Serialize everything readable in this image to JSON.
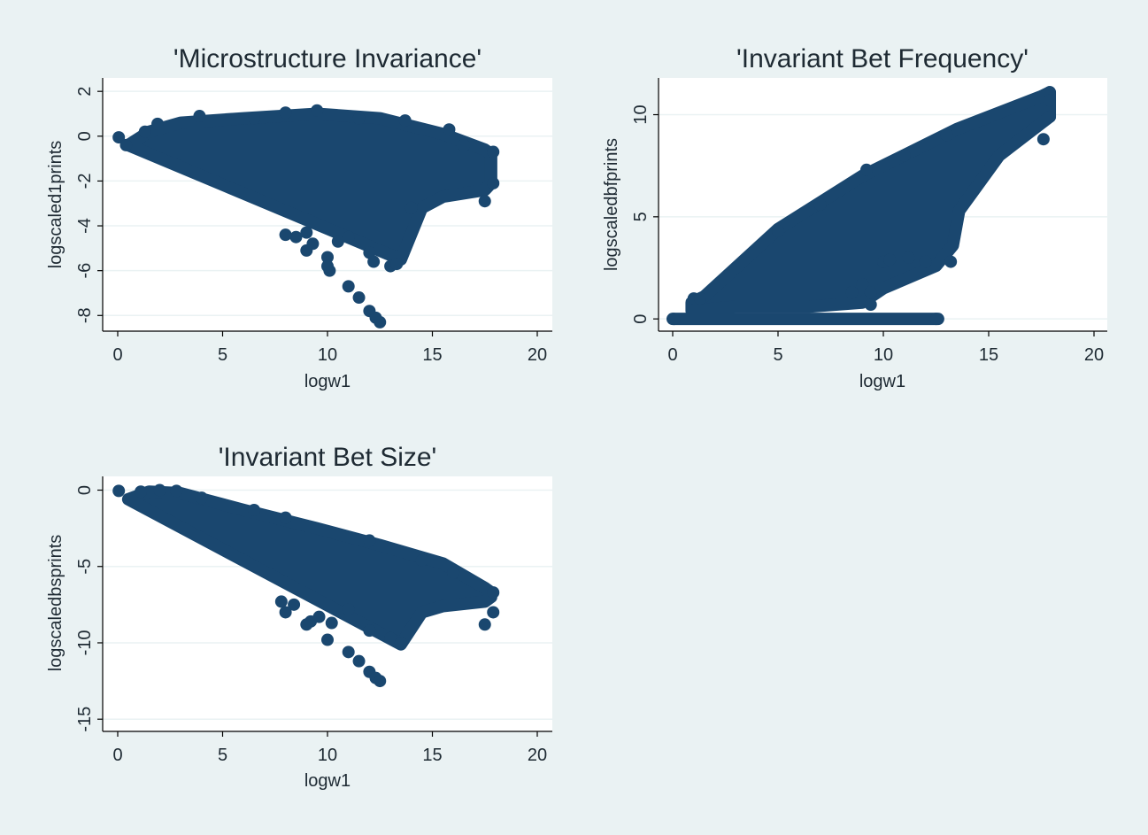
{
  "colors": {
    "marker": "#1a476f",
    "background": "#eaf2f3",
    "plot_area": "#ffffff"
  },
  "chart_data": [
    {
      "type": "scatter",
      "title": "'Microstructure Invariance'",
      "xlabel": "logw1",
      "ylabel": "logscaled1prints",
      "xlim": [
        0,
        20
      ],
      "ylim": [
        -8.7,
        2.6
      ],
      "xticks": [
        "0",
        "5",
        "10",
        "15",
        "20"
      ],
      "yticks": [
        "2",
        "0",
        "-2",
        "-4",
        "-6",
        "-8"
      ],
      "grid": true,
      "band": {
        "lower": [
          [
            0.5,
            -0.4
          ],
          [
            13.5,
            -5.5
          ],
          [
            14.5,
            -3.2
          ],
          [
            15.5,
            -2.7
          ],
          [
            17.5,
            -2.4
          ],
          [
            17.8,
            -2.1
          ]
        ],
        "upper": [
          [
            0.5,
            -0.4
          ],
          [
            1.5,
            0.2
          ],
          [
            3,
            0.6
          ],
          [
            6,
            0.8
          ],
          [
            9.5,
            1.0
          ],
          [
            12.5,
            0.8
          ],
          [
            15.5,
            0.1
          ],
          [
            17.5,
            -0.6
          ],
          [
            17.8,
            -0.8
          ]
        ]
      },
      "points": [
        [
          0.05,
          -0.05
        ],
        [
          0.4,
          -0.4
        ],
        [
          1.3,
          0.2
        ],
        [
          1.9,
          0.55
        ],
        [
          3.9,
          0.9
        ],
        [
          6.5,
          0.8
        ],
        [
          8.0,
          1.05
        ],
        [
          9.5,
          1.15
        ],
        [
          11.5,
          0.8
        ],
        [
          13.7,
          0.7
        ],
        [
          15.8,
          0.3
        ],
        [
          16.5,
          -0.4
        ],
        [
          17.9,
          -0.7
        ],
        [
          17.9,
          -2.1
        ],
        [
          17.5,
          -2.9
        ],
        [
          8.5,
          -4.5
        ],
        [
          9.0,
          -4.3
        ],
        [
          9.3,
          -4.8
        ],
        [
          10.0,
          -5.4
        ],
        [
          10.1,
          -6.0
        ],
        [
          10.5,
          -4.7
        ],
        [
          11.0,
          -4.5
        ],
        [
          12.0,
          -5.2
        ],
        [
          12.2,
          -5.6
        ],
        [
          13.0,
          -5.8
        ],
        [
          13.3,
          -5.7
        ],
        [
          14.0,
          -3.2
        ],
        [
          8.0,
          -4.4
        ],
        [
          9.0,
          -5.1
        ],
        [
          10.0,
          -5.8
        ],
        [
          11.0,
          -6.7
        ],
        [
          11.5,
          -7.2
        ],
        [
          12.0,
          -7.8
        ],
        [
          12.3,
          -8.1
        ],
        [
          12.5,
          -8.3
        ]
      ]
    },
    {
      "type": "scatter",
      "title": "'Invariant Bet Frequency'",
      "xlabel": "logw1",
      "ylabel": "logscaledbfprints",
      "xlim": [
        0,
        20
      ],
      "ylim": [
        -0.6,
        11.8
      ],
      "xticks": [
        "0",
        "5",
        "10",
        "15",
        "20"
      ],
      "yticks": [
        "0",
        "5",
        "10"
      ],
      "grid": true,
      "band": {
        "upper": [
          [
            0.9,
            0.8
          ],
          [
            1.5,
            1.1
          ],
          [
            5,
            4.4
          ],
          [
            9,
            7.0
          ],
          [
            13.5,
            9.3
          ],
          [
            17.5,
            10.9
          ],
          [
            17.9,
            11.1
          ]
        ],
        "lower": [
          [
            0.9,
            0.4
          ],
          [
            3,
            0.6
          ],
          [
            6.5,
            0.6
          ],
          [
            9,
            0.8
          ],
          [
            10,
            1.5
          ],
          [
            12.5,
            2.6
          ],
          [
            13.3,
            3.6
          ],
          [
            13.6,
            5.3
          ],
          [
            15.5,
            8.0
          ],
          [
            17.9,
            9.9
          ]
        ]
      },
      "baseline": {
        "y": 0,
        "x_from": 0,
        "x_to": 12.6
      },
      "points": [
        [
          0.05,
          0.0
        ],
        [
          1.0,
          1.0
        ],
        [
          1.3,
          1.0
        ],
        [
          17.9,
          11.1
        ],
        [
          17.9,
          9.9
        ],
        [
          17.6,
          8.8
        ],
        [
          17.9,
          10.7
        ],
        [
          5.0,
          4.3
        ],
        [
          7.0,
          5.6
        ],
        [
          9.2,
          7.3
        ],
        [
          11.0,
          8.0
        ],
        [
          13.0,
          9.0
        ],
        [
          8.5,
          1.3
        ],
        [
          9.0,
          1.7
        ],
        [
          9.4,
          0.7
        ],
        [
          9.4,
          1.3
        ],
        [
          10.0,
          2.8
        ],
        [
          10.3,
          2.9
        ],
        [
          11.2,
          3.0
        ],
        [
          12.0,
          2.8
        ],
        [
          13.2,
          2.8
        ],
        [
          12.5,
          0.0
        ]
      ]
    },
    {
      "type": "scatter",
      "title": "'Invariant Bet Size'",
      "xlabel": "logw1",
      "ylabel": "logscaledbsprints",
      "xlim": [
        0,
        20
      ],
      "ylim": [
        -15.8,
        0.9
      ],
      "xticks": [
        "0",
        "5",
        "10",
        "15",
        "20"
      ],
      "yticks": [
        "0",
        "-5",
        "-10",
        "-15"
      ],
      "grid": true,
      "band": {
        "lower": [
          [
            0.5,
            -0.6
          ],
          [
            13.5,
            -10.1
          ],
          [
            14.5,
            -8.0
          ],
          [
            15.5,
            -7.6
          ],
          [
            17.5,
            -7.3
          ],
          [
            17.8,
            -7.0
          ]
        ],
        "upper": [
          [
            0.5,
            -0.6
          ],
          [
            1.5,
            -0.1
          ],
          [
            3,
            -0.2
          ],
          [
            6,
            -1.3
          ],
          [
            9.5,
            -2.5
          ],
          [
            12.5,
            -3.6
          ],
          [
            15.5,
            -4.8
          ],
          [
            17.5,
            -6.4
          ],
          [
            17.8,
            -6.7
          ]
        ]
      },
      "points": [
        [
          0.05,
          -0.05
        ],
        [
          1.1,
          -0.1
        ],
        [
          2.0,
          0.0
        ],
        [
          2.8,
          -0.05
        ],
        [
          4.0,
          -0.5
        ],
        [
          6.5,
          -1.3
        ],
        [
          8.0,
          -1.8
        ],
        [
          12.0,
          -3.3
        ],
        [
          14.5,
          -4.6
        ],
        [
          16.0,
          -5.4
        ],
        [
          17.9,
          -6.7
        ],
        [
          17.9,
          -8.0
        ],
        [
          17.5,
          -8.8
        ],
        [
          7.8,
          -7.3
        ],
        [
          8.4,
          -7.5
        ],
        [
          9.2,
          -8.6
        ],
        [
          9.6,
          -8.3
        ],
        [
          10.2,
          -8.7
        ],
        [
          11.0,
          -7.8
        ],
        [
          12.0,
          -9.2
        ],
        [
          13.0,
          -9.7
        ],
        [
          13.5,
          -10.0
        ],
        [
          8.0,
          -8.0
        ],
        [
          9.0,
          -8.8
        ],
        [
          10.0,
          -9.8
        ],
        [
          11.0,
          -10.6
        ],
        [
          11.5,
          -11.2
        ],
        [
          12.0,
          -11.9
        ],
        [
          12.3,
          -12.3
        ],
        [
          12.5,
          -12.5
        ]
      ]
    }
  ]
}
